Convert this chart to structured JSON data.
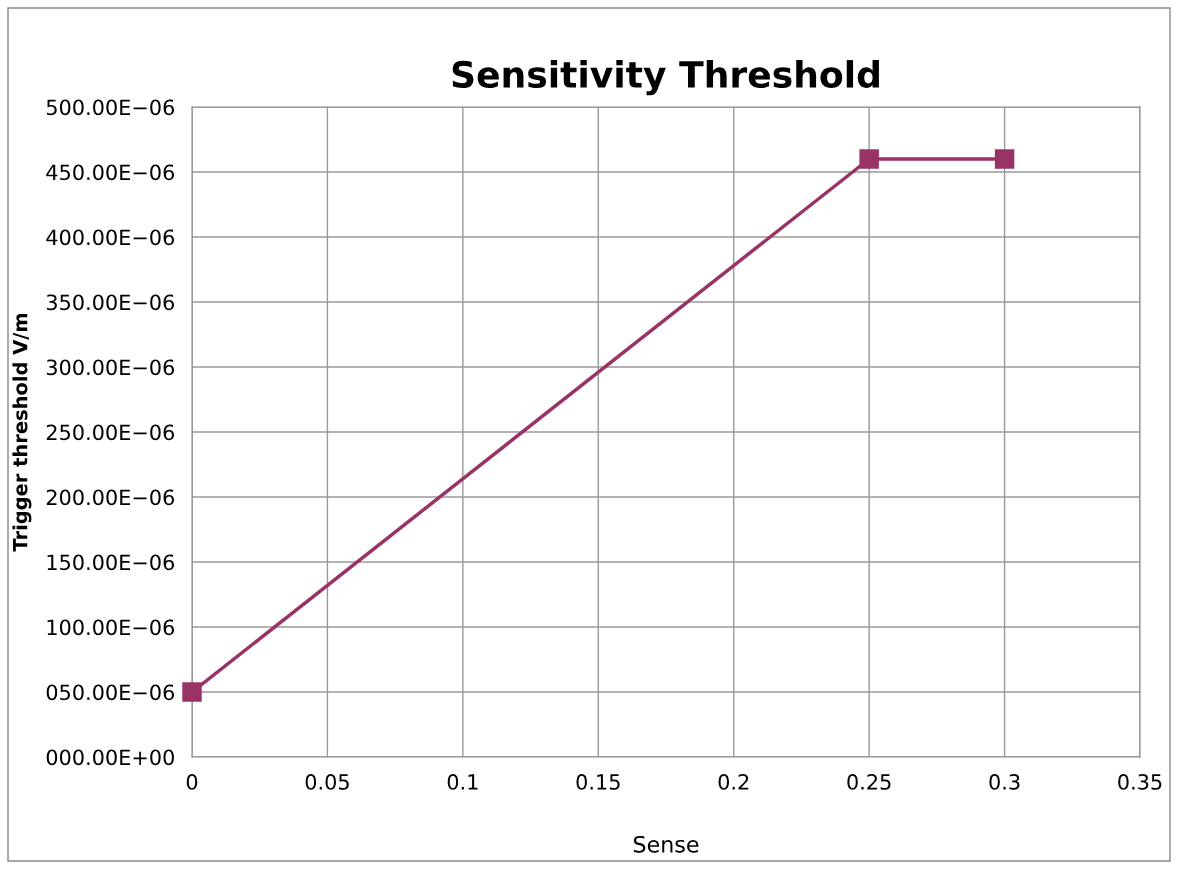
{
  "chart_data": {
    "type": "line",
    "title": "Sensitivity Threshold",
    "xlabel": "Sense",
    "ylabel": "Trigger threshold V/m",
    "x": [
      0,
      0.25,
      0.3
    ],
    "series": [
      {
        "color": "#993366",
        "values": [
          5e-05,
          0.00046,
          0.00046
        ]
      }
    ],
    "xlim": [
      0,
      0.35
    ],
    "xticks": [
      0,
      {
        "value": 0.05,
        "label": "0.05"
      },
      {
        "value": 0.1,
        "label": "0.1"
      },
      {
        "value": 0.15,
        "label": "0.15"
      },
      {
        "value": 0.2,
        "label": "0.2"
      },
      {
        "value": 0.25,
        "label": "0.25"
      },
      {
        "value": 0.3,
        "label": "0.3"
      },
      {
        "value": 0.35,
        "label": "0.35"
      }
    ],
    "ylim": [
      0,
      0.0005
    ],
    "yticks": [
      {
        "value": 0,
        "label": "000.00E+00"
      },
      {
        "value": 5e-05,
        "label": "050.00E−06"
      },
      {
        "value": 0.0001,
        "label": "100.00E−06"
      },
      {
        "value": 0.00015,
        "label": "150.00E−06"
      },
      {
        "value": 0.0002,
        "label": "200.00E−06"
      },
      {
        "value": 0.00025,
        "label": "250.00E−06"
      },
      {
        "value": 0.0003,
        "label": "300.00E−06"
      },
      {
        "value": 0.00035,
        "label": "350.00E−06"
      },
      {
        "value": 0.0004,
        "label": "400.00E−06"
      },
      {
        "value": 0.00045,
        "label": "450.00E−06"
      },
      {
        "value": 0.0005,
        "label": "500.00E−06"
      }
    ],
    "grid": true,
    "marker": "square",
    "line_style": "solid"
  }
}
